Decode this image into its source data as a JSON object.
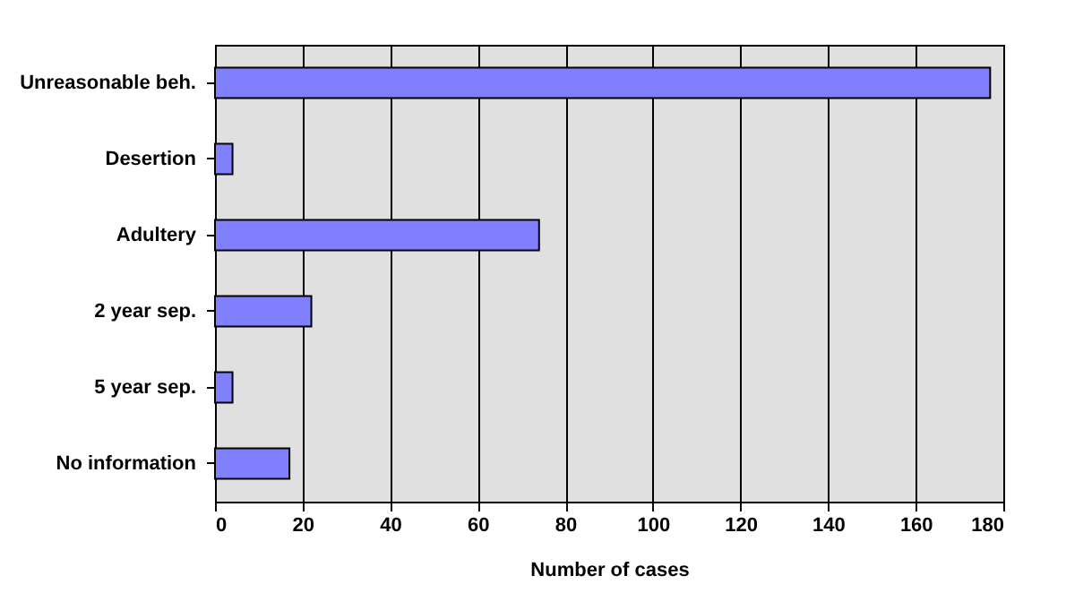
{
  "chart_data": {
    "type": "bar",
    "orientation": "horizontal",
    "xlabel": "Number of cases",
    "categories": [
      "Unreasonable beh.",
      "Desertion",
      "Adultery",
      "2 year sep.",
      "5 year sep.",
      "No information"
    ],
    "values": [
      177,
      4,
      74,
      22,
      4,
      17
    ],
    "color": "#8080ff",
    "xlim": [
      0,
      180
    ],
    "xticks": [
      0,
      20,
      40,
      60,
      80,
      100,
      120,
      140,
      160,
      180
    ],
    "grid": "x"
  }
}
